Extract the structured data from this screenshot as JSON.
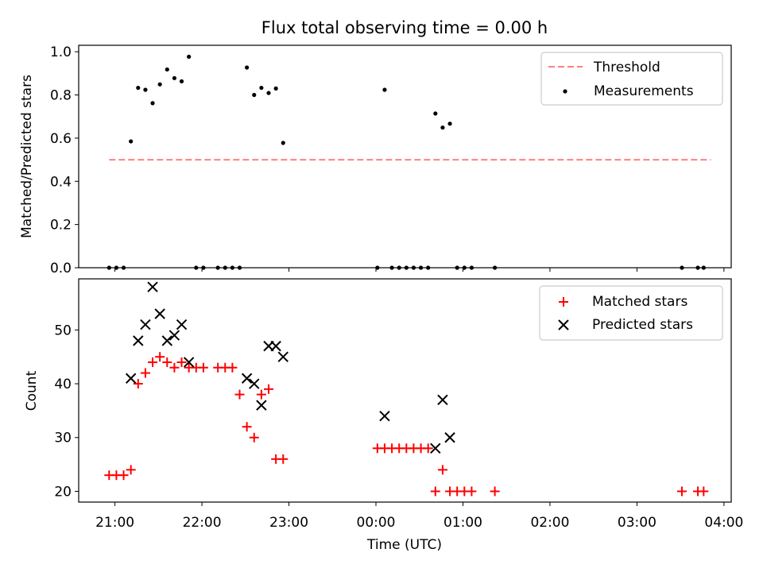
{
  "figure": {
    "title": "Flux total observing time = 0.00 h",
    "xlabel": "Time (UTC)"
  },
  "chart_data": [
    {
      "type": "scatter",
      "ylabel": "Matched/Predicted stars",
      "xlim": [
        "20:35",
        "04:05"
      ],
      "ylim": [
        0,
        1.03
      ],
      "yticks": [
        0.0,
        0.2,
        0.4,
        0.6,
        0.8,
        1.0
      ],
      "ytick_labels": [
        "0.0",
        "0.2",
        "0.4",
        "0.6",
        "0.8",
        "1.0"
      ],
      "legend_position": "top-right",
      "grid": false,
      "series": [
        {
          "name": "Threshold",
          "kind": "line",
          "color": "#ff8080",
          "dashed": true,
          "x": [
            "20:56",
            "03:51"
          ],
          "y": [
            0.5,
            0.5
          ]
        },
        {
          "name": "Measurements",
          "kind": "scatter",
          "marker": "dot",
          "color": "#000000",
          "x": [
            "20:56",
            "21:01",
            "21:06",
            "21:11",
            "21:16",
            "21:21",
            "21:26",
            "21:31",
            "21:36",
            "21:41",
            "21:46",
            "21:51",
            "21:56",
            "22:01",
            "22:11",
            "22:16",
            "22:21",
            "22:26",
            "22:31",
            "22:36",
            "22:41",
            "22:46",
            "22:51",
            "22:56",
            "00:01",
            "00:06",
            "00:11",
            "00:16",
            "00:21",
            "00:26",
            "00:31",
            "00:36",
            "00:41",
            "00:46",
            "00:51",
            "00:56",
            "01:01",
            "01:06",
            "01:22",
            "03:31",
            "03:42",
            "03:46"
          ],
          "y": [
            0,
            0,
            0,
            0.585,
            0.833,
            0.824,
            0.762,
            0.849,
            0.918,
            0.878,
            0.863,
            0.977,
            0,
            0,
            0,
            0,
            0,
            0,
            0.927,
            0.8,
            0.833,
            0.809,
            0.83,
            0.578,
            0,
            0.824,
            0,
            0,
            0,
            0,
            0,
            0,
            0.714,
            0.649,
            0.667,
            0,
            0,
            0,
            0,
            0,
            0,
            0
          ]
        }
      ]
    },
    {
      "type": "scatter",
      "ylabel": "Count",
      "ylim": [
        18,
        59.5
      ],
      "yticks": [
        20,
        30,
        40,
        50
      ],
      "ytick_labels": [
        "20",
        "30",
        "40",
        "50"
      ],
      "legend_position": "top-right",
      "grid": false,
      "series": [
        {
          "name": "Matched stars",
          "kind": "scatter",
          "marker": "plus",
          "color": "#ff0000",
          "x": [
            "20:56",
            "21:01",
            "21:06",
            "21:11",
            "21:16",
            "21:21",
            "21:26",
            "21:31",
            "21:36",
            "21:41",
            "21:46",
            "21:51",
            "21:56",
            "22:01",
            "22:11",
            "22:16",
            "22:21",
            "22:26",
            "22:31",
            "22:36",
            "22:41",
            "22:46",
            "22:51",
            "22:56",
            "00:01",
            "00:06",
            "00:11",
            "00:16",
            "00:21",
            "00:26",
            "00:31",
            "00:36",
            "00:41",
            "00:46",
            "00:51",
            "00:56",
            "01:01",
            "01:06",
            "01:22",
            "03:31",
            "03:42",
            "03:46"
          ],
          "y": [
            23,
            23,
            23,
            24,
            40,
            42,
            44,
            45,
            44,
            43,
            44,
            43,
            43,
            43,
            43,
            43,
            43,
            38,
            32,
            30,
            38,
            39,
            26,
            26,
            28,
            28,
            28,
            28,
            28,
            28,
            28,
            28,
            20,
            24,
            20,
            20,
            20,
            20,
            20,
            20,
            20,
            20
          ]
        },
        {
          "name": "Predicted stars",
          "kind": "scatter",
          "marker": "x",
          "color": "#000000",
          "x": [
            "21:11",
            "21:16",
            "21:21",
            "21:26",
            "21:31",
            "21:36",
            "21:41",
            "21:46",
            "21:51",
            "22:31",
            "22:36",
            "22:41",
            "22:46",
            "22:51",
            "22:56",
            "00:06",
            "00:41",
            "00:46",
            "00:51"
          ],
          "y": [
            41,
            48,
            51,
            58,
            53,
            48,
            49,
            51,
            44,
            41,
            40,
            36,
            47,
            47,
            45,
            34,
            28,
            37,
            30
          ]
        }
      ]
    }
  ],
  "xaxis": {
    "ticks": [
      "21:00",
      "22:00",
      "23:00",
      "00:00",
      "01:00",
      "02:00",
      "03:00",
      "04:00"
    ],
    "tick_labels": [
      "21:00",
      "22:00",
      "23:00",
      "00:00",
      "01:00",
      "02:00",
      "03:00",
      "04:00"
    ]
  }
}
